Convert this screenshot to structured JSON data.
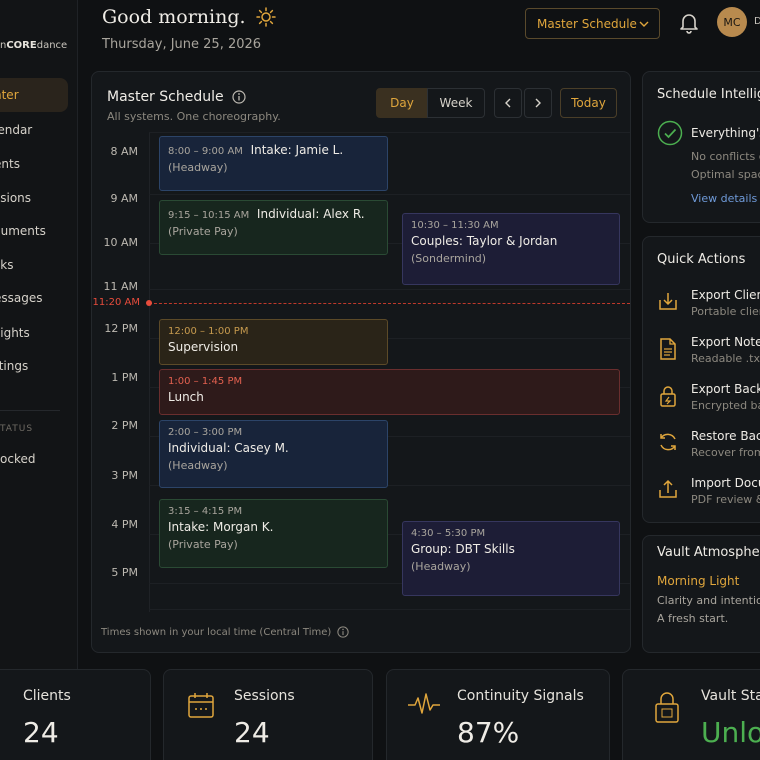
{
  "sidebar": {
    "brand_prefix": "n",
    "brand_bold": "CORE",
    "brand_suffix": "dance",
    "items": [
      {
        "label": "nter",
        "active": true
      },
      {
        "label": "lendar"
      },
      {
        "label": "ents"
      },
      {
        "label": "ssions"
      },
      {
        "label": "cuments"
      },
      {
        "label": "sks"
      },
      {
        "label": "essages"
      },
      {
        "label": "sights"
      },
      {
        "label": "ttings"
      }
    ],
    "status_label": "TATUS",
    "status_value": "ocked"
  },
  "header": {
    "greeting": "Good morning.",
    "date": "Thursday, June 25, 2026",
    "view_select": "Master Schedule",
    "avatar_initials": "MC",
    "avatar_extra": "D"
  },
  "schedule": {
    "title": "Master Schedule",
    "subtitle": "All systems. One choreography.",
    "day_label": "Day",
    "week_label": "Week",
    "today_label": "Today",
    "hours": [
      "8 AM",
      "9 AM",
      "10 AM",
      "11 AM",
      "12 PM",
      "1 PM",
      "2 PM",
      "3 PM",
      "4 PM",
      "5 PM"
    ],
    "now_label": "11:20 AM",
    "events": [
      {
        "time": "8:00 – 9:00 AM",
        "title": "Intake: Jamie L.",
        "note": "(Headway)",
        "color": "blue"
      },
      {
        "time": "9:15 – 10:15 AM",
        "title": "Individual: Alex R.",
        "note": "(Private Pay)",
        "color": "green"
      },
      {
        "time": "10:30 – 11:30 AM",
        "title": "Couples: Taylor & Jordan",
        "note": "(Sondermind)",
        "color": "purple"
      },
      {
        "time": "12:00 – 1:00 PM",
        "title": "Supervision",
        "note": "",
        "color": "amber"
      },
      {
        "time": "1:00 – 1:45 PM",
        "title": "Lunch",
        "note": "",
        "color": "red"
      },
      {
        "time": "2:00 – 3:00 PM",
        "title": "Individual: Casey M.",
        "note": "(Headway)",
        "color": "blue"
      },
      {
        "time": "3:15 – 4:15 PM",
        "title": "Intake: Morgan K.",
        "note": "(Private Pay)",
        "color": "green"
      },
      {
        "time": "4:30 – 5:30 PM",
        "title": "Group: DBT Skills",
        "note": "(Headway)",
        "color": "purple"
      }
    ],
    "footer": "Times shown in your local time (Central Time)"
  },
  "intelligence": {
    "title": "Schedule Intelligen",
    "headline": "Everything's",
    "line1": "No conflicts d",
    "line2": "Optimal spaci",
    "link": "View details"
  },
  "quick_actions": {
    "title": "Quick Actions",
    "items": [
      {
        "title": "Export Client",
        "sub": "Portable clien",
        "icon": "export-icon"
      },
      {
        "title": "Export Note D",
        "sub": "Readable .txt",
        "icon": "document-icon"
      },
      {
        "title": "Export Backu",
        "sub": "Encrypted bac",
        "icon": "lock-icon"
      },
      {
        "title": "Restore Back",
        "sub": "Recover from",
        "icon": "refresh-icon"
      },
      {
        "title": "Import Docum",
        "sub": "PDF review &",
        "icon": "upload-icon"
      }
    ]
  },
  "atmosphere": {
    "title": "Vault Atmosphere",
    "name": "Morning Light",
    "line1": "Clarity and intention.",
    "line2": "A fresh start."
  },
  "stats": [
    {
      "label": "Clients",
      "value": "24"
    },
    {
      "label": "Sessions",
      "value": "24"
    },
    {
      "label": "Continuity Signals",
      "value": "87%"
    },
    {
      "label": "Vault Stat",
      "value": "Unlock"
    }
  ],
  "colors": {
    "accent": "#e0a63c",
    "now": "#e74c3c",
    "success": "#4caf50"
  }
}
